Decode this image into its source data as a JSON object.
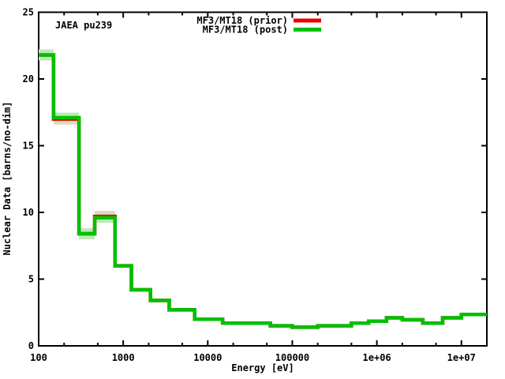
{
  "window": {
    "background": "#ffffff"
  },
  "chart_data": {
    "type": "line",
    "style": "histogram-steps",
    "x_scale": "log",
    "y_scale": "linear",
    "title_label": "JAEA pu239",
    "xlabel": "Energy [eV]",
    "ylabel": "Nuclear Data [barns/no-dim]",
    "xlim": [
      100,
      20000000
    ],
    "ylim": [
      0,
      25
    ],
    "grid": false,
    "legend_position": "top-center",
    "x_major_ticks": [
      {
        "value": 100,
        "label": "100"
      },
      {
        "value": 1000,
        "label": "1000"
      },
      {
        "value": 10000,
        "label": "10000"
      },
      {
        "value": 100000,
        "label": "100000"
      },
      {
        "value": 1000000,
        "label": "1e+06"
      },
      {
        "value": 10000000,
        "label": "1e+07"
      }
    ],
    "x_minor_tick_multiples": [
      2,
      5
    ],
    "y_ticks": [
      {
        "value": 0,
        "label": "0"
      },
      {
        "value": 5,
        "label": "5"
      },
      {
        "value": 10,
        "label": "10"
      },
      {
        "value": 15,
        "label": "15"
      },
      {
        "value": 20,
        "label": "20"
      },
      {
        "value": 25,
        "label": "25"
      }
    ],
    "legend": [
      {
        "label": "MF3/MT18 (prior)",
        "color": "#ef0000"
      },
      {
        "label": "MF3/MT18 (post)",
        "color": "#00c000"
      }
    ],
    "uncertainty_band_max_eV": 1000,
    "series": [
      {
        "name": "MF3/MT18 (prior)",
        "color": "#ef0000",
        "band_color": "#f6cdc6",
        "band_halfwidth_barns": 0.42,
        "bin_edges_eV": [
          100,
          150,
          300,
          460,
          800,
          1250,
          2100,
          3500,
          7000,
          15000,
          55000,
          100000,
          200000,
          500000,
          800000,
          1300000,
          2000000,
          3500000,
          6000000,
          10000000,
          20000000
        ],
        "values_barns": [
          21.8,
          17.0,
          8.4,
          9.7,
          6.0,
          4.2,
          3.4,
          2.7,
          2.0,
          1.7,
          1.5,
          1.4,
          1.5,
          1.7,
          1.85,
          2.1,
          1.95,
          1.7,
          2.1,
          2.35
        ]
      },
      {
        "name": "MF3/MT18 (post)",
        "color": "#00c000",
        "band_color": "#b6edb6",
        "band_halfwidth_barns": 0.38,
        "bin_edges_eV": [
          100,
          150,
          300,
          460,
          800,
          1250,
          2100,
          3500,
          7000,
          15000,
          55000,
          100000,
          200000,
          500000,
          800000,
          1300000,
          2000000,
          3500000,
          6000000,
          10000000,
          20000000
        ],
        "values_barns": [
          21.8,
          17.1,
          8.4,
          9.6,
          6.0,
          4.2,
          3.4,
          2.7,
          2.0,
          1.7,
          1.5,
          1.4,
          1.5,
          1.7,
          1.85,
          2.1,
          1.95,
          1.7,
          2.1,
          2.35
        ]
      }
    ]
  }
}
